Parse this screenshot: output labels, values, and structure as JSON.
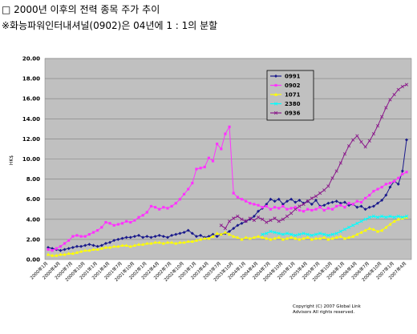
{
  "headings": {
    "line1": "□ 2000년 이후의 전력 종목 주가 추이",
    "line2": "※화능파워인터내셔널(0902)은 04년에 1 : 1의 분할"
  },
  "copyright": {
    "line1": "Copyright (C) 2007 Global Link",
    "line2": "Advisors All rights reserved."
  },
  "chart_data": {
    "type": "line",
    "title": "",
    "xlabel": "",
    "ylabel": "HK$",
    "ylim": [
      0,
      20
    ],
    "y_ticks": [
      "0.00",
      "2.00",
      "4.00",
      "6.00",
      "8.00",
      "10.00",
      "12.00",
      "14.00",
      "16.00",
      "18.00",
      "20.00"
    ],
    "grid": true,
    "legend_position": "top-center",
    "plot_background": "#c0c0c0",
    "x_tick_labels": [
      "2000年1月",
      "2000年4月",
      "2000年7月",
      "2000年10月",
      "2001年1月",
      "2001年4月",
      "2001年7月",
      "2001年10月",
      "2002年1月",
      "2002年4月",
      "2002年7月",
      "2002年10月",
      "2003年1月",
      "2003年4月",
      "2003年7月",
      "2003年10月",
      "2004年1月",
      "2004年4月",
      "2004年7月",
      "2004年10月",
      "2005年1月",
      "2005年4月",
      "2005年7月",
      "2005年10月",
      "2006年1月",
      "2006年4月",
      "2006年7月",
      "2006年10月",
      "2007年1月",
      "2007年4月"
    ],
    "x_count": 88,
    "series": [
      {
        "name": "0991",
        "color": "#1a1a8c",
        "marker": "diamond",
        "values": [
          1.2,
          1.1,
          1.0,
          0.9,
          1.0,
          1.1,
          1.2,
          1.3,
          1.3,
          1.4,
          1.5,
          1.4,
          1.3,
          1.4,
          1.6,
          1.7,
          1.9,
          2.0,
          2.1,
          2.2,
          2.2,
          2.3,
          2.4,
          2.2,
          2.3,
          2.2,
          2.3,
          2.4,
          2.3,
          2.2,
          2.4,
          2.5,
          2.6,
          2.7,
          2.9,
          2.6,
          2.3,
          2.4,
          2.2,
          2.3,
          2.5,
          2.3,
          2.5,
          2.6,
          2.8,
          3.1,
          3.4,
          3.6,
          3.8,
          4.0,
          4.3,
          4.8,
          5.1,
          5.5,
          6.0,
          5.8,
          6.0,
          5.5,
          5.8,
          6.0,
          5.7,
          5.9,
          5.6,
          5.8,
          5.5,
          5.9,
          5.3,
          5.4,
          5.6,
          5.7,
          5.8,
          5.6,
          5.7,
          5.4,
          5.5,
          5.2,
          5.3,
          5.0,
          5.2,
          5.3,
          5.6,
          5.9,
          6.4,
          7.2,
          7.8,
          7.5,
          8.8,
          11.9
        ]
      },
      {
        "name": "0902",
        "color": "#ff33ff",
        "marker": "square",
        "values": [
          1.0,
          0.9,
          1.1,
          1.3,
          1.6,
          1.9,
          2.3,
          2.4,
          2.3,
          2.3,
          2.5,
          2.7,
          2.9,
          3.2,
          3.7,
          3.6,
          3.4,
          3.5,
          3.6,
          3.8,
          3.7,
          3.9,
          4.2,
          4.4,
          4.7,
          5.3,
          5.2,
          5.0,
          5.2,
          5.1,
          5.3,
          5.6,
          6.0,
          6.5,
          7.0,
          7.6,
          9.0,
          9.1,
          9.2,
          10.1,
          9.8,
          11.5,
          11.0,
          12.5,
          13.2,
          6.6,
          6.2,
          6.0,
          5.8,
          5.6,
          5.5,
          5.4,
          5.2,
          5.3,
          5.0,
          5.2,
          5.1,
          5.3,
          5.0,
          5.1,
          5.2,
          4.9,
          4.8,
          5.0,
          4.9,
          5.0,
          5.2,
          4.9,
          5.1,
          5.0,
          5.3,
          5.4,
          5.2,
          5.6,
          5.5,
          5.8,
          5.7,
          6.1,
          6.4,
          6.8,
          7.0,
          7.2,
          7.5,
          7.6,
          7.8,
          8.1,
          8.5,
          8.7
        ]
      },
      {
        "name": "1071",
        "color": "#ffff00",
        "marker": "triangle",
        "values": [
          0.5,
          0.4,
          0.4,
          0.5,
          0.5,
          0.6,
          0.6,
          0.7,
          0.8,
          0.9,
          0.9,
          1.0,
          1.0,
          1.1,
          1.2,
          1.2,
          1.3,
          1.3,
          1.4,
          1.4,
          1.3,
          1.4,
          1.5,
          1.5,
          1.6,
          1.6,
          1.7,
          1.7,
          1.6,
          1.7,
          1.7,
          1.6,
          1.7,
          1.7,
          1.8,
          1.8,
          1.9,
          2.0,
          2.1,
          2.1,
          2.3,
          2.6,
          2.5,
          2.7,
          2.5,
          2.3,
          2.2,
          2.0,
          2.2,
          2.1,
          2.2,
          2.3,
          2.2,
          2.1,
          2.0,
          2.1,
          2.2,
          2.0,
          2.1,
          2.2,
          2.1,
          2.0,
          2.1,
          2.2,
          2.0,
          2.1,
          2.1,
          2.2,
          2.0,
          2.1,
          2.2,
          2.3,
          2.1,
          2.2,
          2.3,
          2.5,
          2.7,
          2.9,
          3.1,
          3.0,
          2.8,
          2.9,
          3.2,
          3.5,
          3.8,
          4.0,
          4.1,
          4.2
        ]
      },
      {
        "name": "2380",
        "color": "#00ffff",
        "marker": "x",
        "values": [
          null,
          null,
          null,
          null,
          null,
          null,
          null,
          null,
          null,
          null,
          null,
          null,
          null,
          null,
          null,
          null,
          null,
          null,
          null,
          null,
          null,
          null,
          null,
          null,
          null,
          null,
          null,
          null,
          null,
          null,
          null,
          null,
          null,
          null,
          null,
          null,
          null,
          null,
          null,
          null,
          null,
          null,
          null,
          null,
          null,
          null,
          null,
          null,
          null,
          null,
          null,
          null,
          2.5,
          2.6,
          2.8,
          2.7,
          2.6,
          2.5,
          2.6,
          2.5,
          2.4,
          2.5,
          2.6,
          2.5,
          2.4,
          2.5,
          2.6,
          2.5,
          2.4,
          2.5,
          2.6,
          2.8,
          3.0,
          3.2,
          3.4,
          3.6,
          3.8,
          4.0,
          4.2,
          4.3,
          4.2,
          4.3,
          4.2,
          4.3,
          4.2,
          4.3,
          4.2,
          4.3
        ]
      },
      {
        "name": "0936",
        "color": "#8b1a8b",
        "marker": "x",
        "values": [
          null,
          null,
          null,
          null,
          null,
          null,
          null,
          null,
          null,
          null,
          null,
          null,
          null,
          null,
          null,
          null,
          null,
          null,
          null,
          null,
          null,
          null,
          null,
          null,
          null,
          null,
          null,
          null,
          null,
          null,
          null,
          null,
          null,
          null,
          null,
          null,
          null,
          null,
          null,
          null,
          null,
          null,
          3.4,
          3.1,
          3.8,
          4.1,
          4.3,
          4.0,
          3.8,
          4.1,
          3.9,
          4.2,
          4.0,
          3.7,
          3.9,
          4.1,
          3.8,
          4.0,
          4.3,
          4.6,
          5.0,
          5.3,
          5.5,
          5.8,
          6.1,
          6.3,
          6.6,
          6.9,
          7.3,
          8.1,
          8.8,
          9.6,
          10.5,
          11.3,
          11.9,
          12.3,
          11.7,
          11.2,
          11.8,
          12.5,
          13.3,
          14.2,
          15.1,
          15.9,
          16.4,
          16.9,
          17.2,
          17.4
        ]
      }
    ]
  }
}
